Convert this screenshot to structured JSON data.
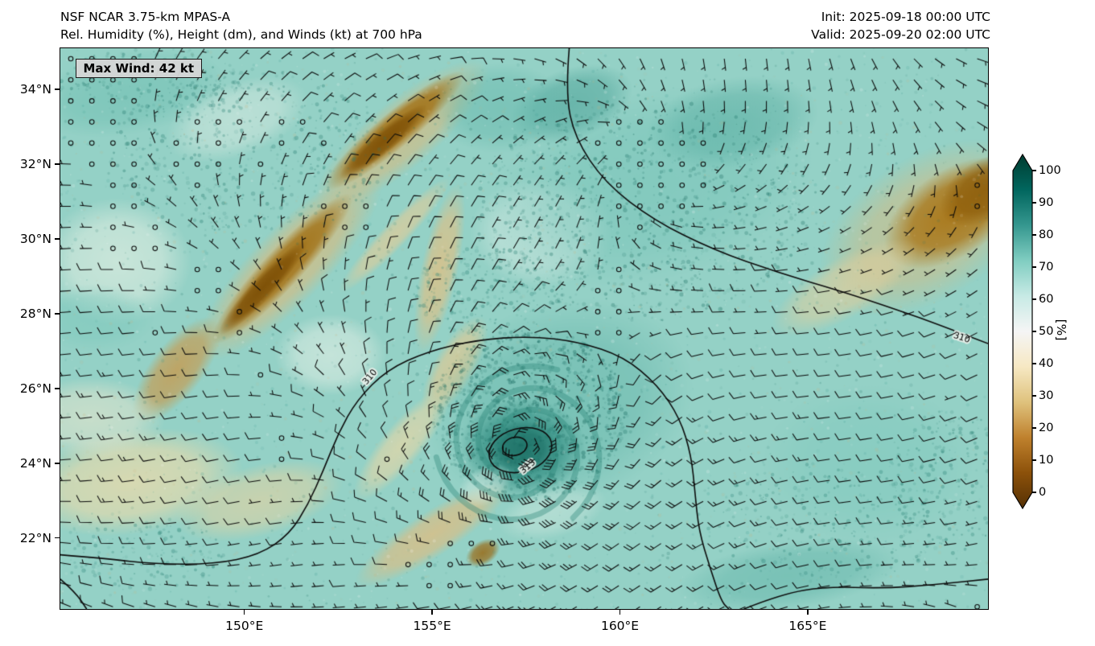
{
  "header": {
    "title_line1": "NSF NCAR 3.75-km MPAS-A",
    "title_line2": "Rel. Humidity (%), Height (dm), and Winds (kt) at 700 hPa",
    "init_label": "Init: 2025-09-18 00:00 UTC",
    "valid_label": "Valid: 2025-09-20 02:00 UTC"
  },
  "chart_data": {
    "type": "heatmap",
    "model": "NSF NCAR 3.75-km MPAS-A",
    "variable": "Relative Humidity",
    "units": "%",
    "overlay": "Height (dm), Winds (kt)",
    "level": "700 hPa",
    "init": "2025-09-18 00:00 UTC",
    "valid": "2025-09-20 02:00 UTC",
    "max_wind_label": "Max Wind: 42 kt",
    "max_wind_kt": 42,
    "x_range": [
      145.1,
      169.8
    ],
    "y_range": [
      20.1,
      35.1
    ],
    "x_ticks": [
      {
        "value": 150,
        "label": "150°E"
      },
      {
        "value": 155,
        "label": "155°E"
      },
      {
        "value": 160,
        "label": "160°E"
      },
      {
        "value": 165,
        "label": "165°E"
      }
    ],
    "y_ticks": [
      {
        "value": 34,
        "label": "34°N"
      },
      {
        "value": 32,
        "label": "32°N"
      },
      {
        "value": 30,
        "label": "30°N"
      },
      {
        "value": 28,
        "label": "28°N"
      },
      {
        "value": 26,
        "label": "26°N"
      },
      {
        "value": 24,
        "label": "24°N"
      },
      {
        "value": 22,
        "label": "22°N"
      }
    ],
    "colorbar": {
      "label": "[%]",
      "min": 0,
      "max": 100,
      "ticks": [
        0,
        10,
        20,
        30,
        40,
        50,
        60,
        70,
        80,
        90,
        100
      ],
      "colors": [
        "#543005",
        "#8c510a",
        "#bf812d",
        "#dfc27d",
        "#f6e8c3",
        "#f5f5f5",
        "#c7eae5",
        "#80cdc1",
        "#35978f",
        "#01665e",
        "#003c30"
      ]
    },
    "cyclone": {
      "lon": 157.4,
      "lat": 24.4,
      "spiral": {
        "arms": 3,
        "turns": 1.15,
        "r0": 0.25,
        "r1": 2.3,
        "color": "#2c867a",
        "width": 7,
        "alpha": 0.38
      }
    },
    "contours": [
      {
        "id": "h310-north",
        "label": "310",
        "label_pos": [
          169.1,
          27.35
        ],
        "label_rot": 18,
        "points": [
          [
            158.65,
            35.1
          ],
          [
            158.55,
            33.9
          ],
          [
            158.8,
            32.7
          ],
          [
            159.6,
            31.5
          ],
          [
            160.9,
            30.5
          ],
          [
            162.5,
            29.7
          ],
          [
            164.2,
            29.1
          ],
          [
            165.9,
            28.6
          ],
          [
            167.4,
            28.1
          ],
          [
            168.5,
            27.7
          ],
          [
            169.8,
            27.2
          ]
        ]
      },
      {
        "id": "h310-main",
        "label": "310",
        "label_pos": [
          153.35,
          26.3
        ],
        "label_rot": -50,
        "points": [
          [
            145.1,
            21.55
          ],
          [
            146.3,
            21.45
          ],
          [
            147.6,
            21.3
          ],
          [
            149.2,
            21.3
          ],
          [
            150.4,
            21.55
          ],
          [
            151.2,
            22.1
          ],
          [
            151.7,
            22.9
          ],
          [
            152.1,
            23.8
          ],
          [
            152.5,
            24.8
          ],
          [
            153.0,
            25.7
          ],
          [
            153.8,
            26.5
          ],
          [
            154.9,
            27.0
          ],
          [
            156.2,
            27.3
          ],
          [
            157.6,
            27.4
          ],
          [
            158.9,
            27.25
          ],
          [
            160.1,
            26.85
          ],
          [
            161.0,
            26.1
          ],
          [
            161.6,
            25.2
          ],
          [
            161.9,
            24.2
          ],
          [
            162.0,
            23.2
          ],
          [
            162.1,
            22.2
          ],
          [
            162.4,
            21.2
          ],
          [
            162.7,
            20.3
          ],
          [
            162.9,
            20.1
          ]
        ]
      },
      {
        "id": "h313-closed",
        "label": "313",
        "label_pos": [
          157.55,
          23.9
        ],
        "label_rot": -40,
        "closed": true,
        "ellipse": {
          "lon": 157.35,
          "lat": 24.35,
          "rx": 0.85,
          "ry": 0.58,
          "rot": -15
        }
      },
      {
        "id": "inner-closed",
        "closed": true,
        "ellipse": {
          "lon": 157.2,
          "lat": 24.45,
          "rx": 0.33,
          "ry": 0.24,
          "rot": -15
        }
      },
      {
        "id": "bottom-right",
        "points": [
          [
            163.3,
            20.1
          ],
          [
            164.3,
            20.5
          ],
          [
            165.5,
            20.7
          ],
          [
            167.0,
            20.65
          ],
          [
            168.4,
            20.75
          ],
          [
            169.8,
            20.9
          ]
        ]
      },
      {
        "id": "bottom-left-short",
        "points": [
          [
            145.1,
            20.9
          ],
          [
            145.5,
            20.55
          ],
          [
            145.8,
            20.1
          ]
        ]
      }
    ],
    "wind": {
      "vmax": 42,
      "rm": 0.95,
      "shaft": 15,
      "calm_zones": [
        [
          149.3,
          32.4,
          1.25
        ],
        [
          151.6,
          32.9,
          0.85
        ],
        [
          147.1,
          30.2,
          1.0
        ],
        [
          148.9,
          28.85,
          0.6
        ],
        [
          152.7,
          30.8,
          0.8
        ],
        [
          155.1,
          21.3,
          0.8
        ],
        [
          156.4,
          21.8,
          0.55
        ],
        [
          150.1,
          26.4,
          0.5
        ],
        [
          154.1,
          23.9,
          0.45
        ],
        [
          151.0,
          24.3,
          0.45
        ],
        [
          147.9,
          27.5,
          0.5
        ],
        [
          146.5,
          32.0,
          0.8
        ],
        [
          149.7,
          27.7,
          0.4
        ],
        [
          145.9,
          30.9,
          0.5
        ]
      ]
    },
    "field": {
      "base_color": "#94d1c6",
      "features": [
        {
          "lon": 146.9,
          "lat": 33.9,
          "rx": 2.6,
          "ry": 1.1,
          "rot": -10,
          "color": "#6fbfb2",
          "alpha": 0.55
        },
        {
          "lon": 146.6,
          "lat": 29.4,
          "rx": 2.0,
          "ry": 1.7,
          "rot": 0,
          "color": "#ecf3e6",
          "alpha": 0.6
        },
        {
          "lon": 149.8,
          "lat": 33.2,
          "rx": 2.0,
          "ry": 1.0,
          "rot": -20,
          "color": "#e2efe6",
          "alpha": 0.5
        },
        {
          "lon": 152.3,
          "lat": 26.9,
          "rx": 1.5,
          "ry": 1.1,
          "rot": 0,
          "color": "#edf4ea",
          "alpha": 0.55
        },
        {
          "lon": 157.9,
          "lat": 30.2,
          "rx": 1.9,
          "ry": 1.5,
          "rot": 0,
          "color": "#e6f2ec",
          "alpha": 0.5
        },
        {
          "lon": 151.2,
          "lat": 29.3,
          "rx": 3.4,
          "ry": 1.0,
          "rot": -46,
          "color": "#d9bb7e",
          "alpha": 0.75
        },
        {
          "lon": 154.2,
          "lat": 32.8,
          "rx": 2.9,
          "ry": 0.9,
          "rot": -40,
          "color": "#d9bb7e",
          "alpha": 0.7
        },
        {
          "lon": 151.0,
          "lat": 29.2,
          "rx": 2.7,
          "ry": 0.52,
          "rot": -47,
          "color": "#a06d0f",
          "alpha": 0.95
        },
        {
          "lon": 154.0,
          "lat": 32.9,
          "rx": 2.4,
          "ry": 0.48,
          "rot": -40,
          "color": "#a06d0f",
          "alpha": 0.95
        },
        {
          "lon": 150.5,
          "lat": 28.7,
          "rx": 1.7,
          "ry": 0.3,
          "rot": -47,
          "color": "#7b4e06",
          "alpha": 0.9
        },
        {
          "lon": 153.7,
          "lat": 32.6,
          "rx": 1.5,
          "ry": 0.3,
          "rot": -40,
          "color": "#7b4e06",
          "alpha": 0.85
        },
        {
          "lon": 148.2,
          "lat": 26.5,
          "rx": 1.7,
          "ry": 0.7,
          "rot": -52,
          "color": "#c89a4e",
          "alpha": 0.8
        },
        {
          "lon": 154.0,
          "lat": 30.1,
          "rx": 2.1,
          "ry": 0.35,
          "rot": -46,
          "color": "#e4cc97",
          "alpha": 0.7
        },
        {
          "lon": 155.2,
          "lat": 29.2,
          "rx": 2.3,
          "ry": 0.5,
          "rot": -78,
          "color": "#dfc186",
          "alpha": 0.8
        },
        {
          "lon": 155.6,
          "lat": 26.6,
          "rx": 1.5,
          "ry": 0.55,
          "rot": -60,
          "color": "#e4c991",
          "alpha": 0.75
        },
        {
          "lon": 154.2,
          "lat": 24.5,
          "rx": 1.9,
          "ry": 0.55,
          "rot": -50,
          "color": "#ead7a5",
          "alpha": 0.7
        },
        {
          "lon": 147.0,
          "lat": 23.5,
          "rx": 3.0,
          "ry": 1.4,
          "rot": -8,
          "color": "#eedcab",
          "alpha": 0.75
        },
        {
          "lon": 150.4,
          "lat": 23.0,
          "rx": 2.3,
          "ry": 0.95,
          "rot": -15,
          "color": "#ead4a0",
          "alpha": 0.6
        },
        {
          "lon": 145.9,
          "lat": 25.2,
          "rx": 2.0,
          "ry": 1.1,
          "rot": 0,
          "color": "#f1e9cf",
          "alpha": 0.55
        },
        {
          "lon": 155.0,
          "lat": 22.1,
          "rx": 2.4,
          "ry": 0.6,
          "rot": -33,
          "color": "#ddbe84",
          "alpha": 0.8
        },
        {
          "lon": 156.35,
          "lat": 21.6,
          "rx": 0.5,
          "ry": 0.32,
          "rot": -33,
          "color": "#9a6a16",
          "alpha": 0.85
        },
        {
          "lon": 168.2,
          "lat": 30.3,
          "rx": 3.2,
          "ry": 1.9,
          "rot": -33,
          "color": "#d9bb7e",
          "alpha": 0.6
        },
        {
          "lon": 168.9,
          "lat": 30.7,
          "rx": 2.1,
          "ry": 1.15,
          "rot": -33,
          "color": "#a8710f",
          "alpha": 0.9
        },
        {
          "lon": 169.7,
          "lat": 31.3,
          "rx": 1.3,
          "ry": 0.8,
          "rot": -33,
          "color": "#8a5a08",
          "alpha": 0.8
        },
        {
          "lon": 166.0,
          "lat": 28.7,
          "rx": 2.2,
          "ry": 0.8,
          "rot": -30,
          "color": "#e6cf9a",
          "alpha": 0.6
        },
        {
          "lon": 158.4,
          "lat": 25.6,
          "rx": 3.6,
          "ry": 2.7,
          "rot": -18,
          "color": "#62b5a9",
          "alpha": 0.55
        },
        {
          "lon": 157.4,
          "lat": 24.4,
          "rx": 1.7,
          "ry": 1.35,
          "rot": 0,
          "color": "#2e8b7f",
          "alpha": 0.8
        },
        {
          "lon": 157.4,
          "lat": 24.4,
          "rx": 0.95,
          "ry": 0.75,
          "rot": 0,
          "color": "#186a60",
          "alpha": 0.75
        },
        {
          "lon": 160.8,
          "lat": 31.4,
          "rx": 4.4,
          "ry": 2.5,
          "rot": -14,
          "color": "#74c3b7",
          "alpha": 0.5
        },
        {
          "lon": 158.7,
          "lat": 33.6,
          "rx": 1.7,
          "ry": 0.95,
          "rot": -20,
          "color": "#47a095",
          "alpha": 0.55
        },
        {
          "lon": 163.0,
          "lat": 33.1,
          "rx": 2.3,
          "ry": 1.2,
          "rot": -10,
          "color": "#55aca0",
          "alpha": 0.5
        },
        {
          "lon": 166.6,
          "lat": 24.0,
          "rx": 2.8,
          "ry": 2.1,
          "rot": 0,
          "color": "#7cc8bc",
          "alpha": 0.45
        },
        {
          "lon": 164.5,
          "lat": 21.0,
          "rx": 3.0,
          "ry": 0.9,
          "rot": -8,
          "color": "#5fb3a7",
          "alpha": 0.5
        },
        {
          "lon": 146.0,
          "lat": 27.9,
          "rx": 1.6,
          "ry": 0.9,
          "rot": 0,
          "color": "#7cc8bc",
          "alpha": 0.5
        },
        {
          "lon": 156.8,
          "lat": 33.5,
          "rx": 1.8,
          "ry": 1.2,
          "rot": 0,
          "color": "#63b7ab",
          "alpha": 0.5
        },
        {
          "lon": 158.2,
          "lat": 22.7,
          "rx": 1.5,
          "ry": 0.7,
          "rot": -15,
          "color": "#cfe9df",
          "alpha": 0.5
        },
        {
          "lon": 156.4,
          "lat": 23.4,
          "rx": 0.8,
          "ry": 0.5,
          "rot": -30,
          "color": "#d8ede4",
          "alpha": 0.5
        }
      ],
      "speckle_zones": [
        {
          "lon": 157.6,
          "lat": 25.3,
          "rx": 2.6,
          "ry": 2.3,
          "n": 1000,
          "color": "#17695f"
        },
        {
          "lon": 160.7,
          "lat": 30.8,
          "rx": 4.6,
          "ry": 3.0,
          "n": 900,
          "color": "#27796d"
        },
        {
          "lon": 150.2,
          "lat": 32.3,
          "rx": 3.8,
          "ry": 2.2,
          "n": 450,
          "color": "#2a7f73"
        },
        {
          "lon": 147.5,
          "lat": 34.2,
          "rx": 2.5,
          "ry": 0.9,
          "n": 200,
          "color": "#2a7f73"
        },
        {
          "lon": 165.5,
          "lat": 22.4,
          "rx": 3.2,
          "ry": 1.6,
          "n": 280,
          "color": "#2f8579"
        },
        {
          "lon": 147.2,
          "lat": 21.6,
          "rx": 2.2,
          "ry": 1.0,
          "n": 160,
          "color": "#2f8579"
        },
        {
          "lon": 168.8,
          "lat": 23.5,
          "rx": 1.6,
          "ry": 2.0,
          "n": 200,
          "color": "#2f8579"
        },
        {
          "lon": 156.5,
          "lat": 28.6,
          "rx": 2.0,
          "ry": 1.2,
          "n": 250,
          "color": "#2f8579"
        }
      ],
      "grain": {
        "n": 2600,
        "colors": [
          "#ffffff",
          "#1c6f64",
          "#cdb27e",
          "#35978f"
        ]
      }
    }
  }
}
